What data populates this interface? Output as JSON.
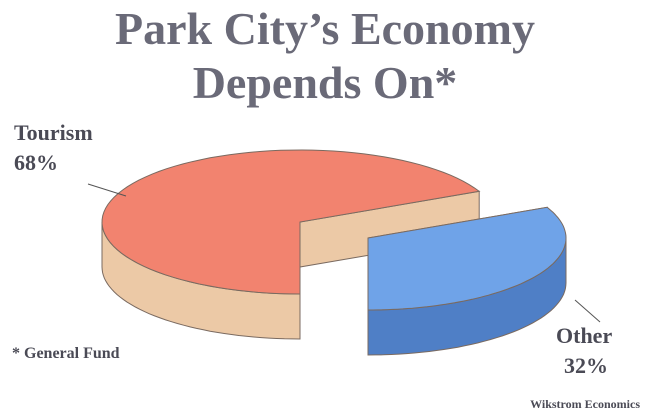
{
  "chart_data": {
    "type": "pie",
    "title": "Park City’s Economy Depends On*",
    "categories": [
      "Tourism",
      "Other"
    ],
    "values": [
      68,
      32
    ],
    "value_labels": [
      "68%",
      "32%"
    ],
    "colors": [
      "#f2836f",
      "#6fa3e8"
    ],
    "side_colors": [
      "#ecc9a6",
      "#4f7fc6"
    ],
    "footnote": "* General Fund",
    "source": "Wikstrom Economics"
  }
}
